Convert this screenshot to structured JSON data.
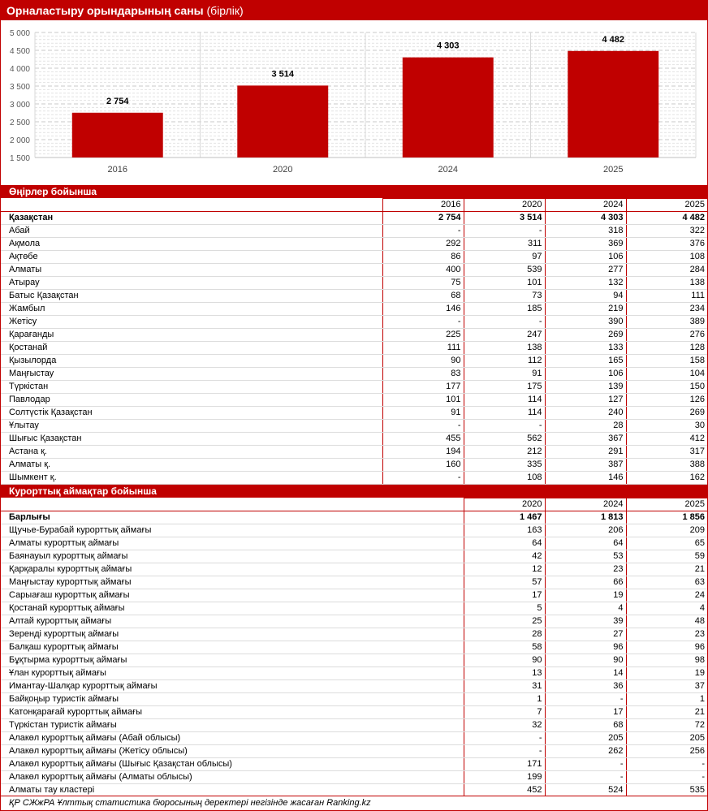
{
  "title": "Орналастыру орындарының саны",
  "unit": " (бірлік)",
  "chart_data": {
    "type": "bar",
    "categories": [
      "2016",
      "2020",
      "2024",
      "2025"
    ],
    "values": [
      2754,
      3514,
      4303,
      4482
    ],
    "labels": [
      "2 754",
      "3 514",
      "4 303",
      "4 482"
    ],
    "ylim": [
      1500,
      5000
    ],
    "yticks": [
      "1 500",
      "2 000",
      "2 500",
      "3 000",
      "3 500",
      "4 000",
      "4 500",
      "5 000"
    ],
    "ytick_values": [
      1500,
      2000,
      2500,
      3000,
      3500,
      4000,
      4500,
      5000
    ],
    "grid": true,
    "bar_color": "#c00000"
  },
  "regions": {
    "header": "Өңірлер бойынша",
    "years": [
      "2016",
      "2020",
      "2024",
      "2025"
    ],
    "rows": [
      {
        "name": "Қазақстан",
        "v": [
          "2 754",
          "3 514",
          "4 303",
          "4 482"
        ]
      },
      {
        "name": "Абай",
        "v": [
          "-",
          "-",
          "318",
          "322"
        ]
      },
      {
        "name": "Ақмола",
        "v": [
          "292",
          "311",
          "369",
          "376"
        ]
      },
      {
        "name": "Ақтөбе",
        "v": [
          "86",
          "97",
          "106",
          "108"
        ]
      },
      {
        "name": "Алматы",
        "v": [
          "400",
          "539",
          "277",
          "284"
        ]
      },
      {
        "name": "Атырау",
        "v": [
          "75",
          "101",
          "132",
          "138"
        ]
      },
      {
        "name": "Батыс Қазақстан",
        "v": [
          "68",
          "73",
          "94",
          "111"
        ]
      },
      {
        "name": "Жамбыл",
        "v": [
          "146",
          "185",
          "219",
          "234"
        ]
      },
      {
        "name": "Жетісу",
        "v": [
          "-",
          "-",
          "390",
          "389"
        ]
      },
      {
        "name": "Қарағанды",
        "v": [
          "225",
          "247",
          "269",
          "276"
        ]
      },
      {
        "name": "Қостанай",
        "v": [
          "111",
          "138",
          "133",
          "128"
        ]
      },
      {
        "name": "Қызылорда",
        "v": [
          "90",
          "112",
          "165",
          "158"
        ]
      },
      {
        "name": "Маңғыстау",
        "v": [
          "83",
          "91",
          "106",
          "104"
        ]
      },
      {
        "name": "Түркістан",
        "v": [
          "177",
          "175",
          "139",
          "150"
        ]
      },
      {
        "name": "Павлодар",
        "v": [
          "101",
          "114",
          "127",
          "126"
        ]
      },
      {
        "name": "Солтүстік Қазақстан",
        "v": [
          "91",
          "114",
          "240",
          "269"
        ]
      },
      {
        "name": "Ұлытау",
        "v": [
          "-",
          "-",
          "28",
          "30"
        ]
      },
      {
        "name": "Шығыс Қазақстан",
        "v": [
          "455",
          "562",
          "367",
          "412"
        ]
      },
      {
        "name": "Астана қ.",
        "v": [
          "194",
          "212",
          "291",
          "317"
        ]
      },
      {
        "name": "Алматы қ.",
        "v": [
          "160",
          "335",
          "387",
          "388"
        ]
      },
      {
        "name": "Шымкент қ.",
        "v": [
          "-",
          "108",
          "146",
          "162"
        ]
      }
    ]
  },
  "resorts": {
    "header": "Курорттық аймақтар бойынша",
    "years": [
      "2020",
      "2024",
      "2025"
    ],
    "rows": [
      {
        "name": "Барлығы",
        "v": [
          "1 467",
          "1 813",
          "1 856"
        ]
      },
      {
        "name": "Щучье-Бурабай курорттық аймағы",
        "v": [
          "163",
          "206",
          "209"
        ]
      },
      {
        "name": "Алматы курорттық аймағы",
        "v": [
          "64",
          "64",
          "65"
        ]
      },
      {
        "name": "Баянауыл курорттық аймағы",
        "v": [
          "42",
          "53",
          "59"
        ]
      },
      {
        "name": "Қарқаралы курорттық аймағы",
        "v": [
          "12",
          "23",
          "21"
        ]
      },
      {
        "name": "Маңғыстау курорттық аймағы",
        "v": [
          "57",
          "66",
          "63"
        ]
      },
      {
        "name": "Сарыағаш курорттық аймағы",
        "v": [
          "17",
          "19",
          "24"
        ]
      },
      {
        "name": "Қостанай курорттық аймағы",
        "v": [
          "5",
          "4",
          "4"
        ]
      },
      {
        "name": "Алтай курорттық аймағы",
        "v": [
          "25",
          "39",
          "48"
        ]
      },
      {
        "name": "Зеренді курорттық аймағы",
        "v": [
          "28",
          "27",
          "23"
        ]
      },
      {
        "name": "Балқаш курорттық аймағы",
        "v": [
          "58",
          "96",
          "96"
        ]
      },
      {
        "name": "Бұқтырма курорттық аймағы",
        "v": [
          "90",
          "90",
          "98"
        ]
      },
      {
        "name": "Ұлан курорттық аймағы",
        "v": [
          "13",
          "14",
          "19"
        ]
      },
      {
        "name": "Имантау-Шалқар курорттық аймағы",
        "v": [
          "31",
          "36",
          "37"
        ]
      },
      {
        "name": "Байқоңыр туристік аймағы",
        "v": [
          "1",
          "-",
          "1"
        ]
      },
      {
        "name": "Катонқарағай курорттық аймағы",
        "v": [
          "7",
          "17",
          "21"
        ]
      },
      {
        "name": "Түркістан туристік аймағы",
        "v": [
          "32",
          "68",
          "72"
        ]
      },
      {
        "name": "Алакөл курорттық аймағы (Абай облысы)",
        "v": [
          "-",
          "205",
          "205"
        ]
      },
      {
        "name": "Алакөл курорттық аймағы (Жетісу облысы)",
        "v": [
          "-",
          "262",
          "256"
        ]
      },
      {
        "name": "Алакөл курорттық аймағы (Шығыс Қазақстан облысы)",
        "v": [
          "171",
          "-",
          "-"
        ]
      },
      {
        "name": "Алакөл курорттық аймағы (Алматы облысы)",
        "v": [
          "199",
          "-",
          "-"
        ]
      },
      {
        "name": "Алматы тау кластері",
        "v": [
          "452",
          "524",
          "535"
        ]
      }
    ]
  },
  "source": "ҚР СЖжРА Ұлттық статистика бюросының деректері негізінде жасаған Ranking.kz"
}
